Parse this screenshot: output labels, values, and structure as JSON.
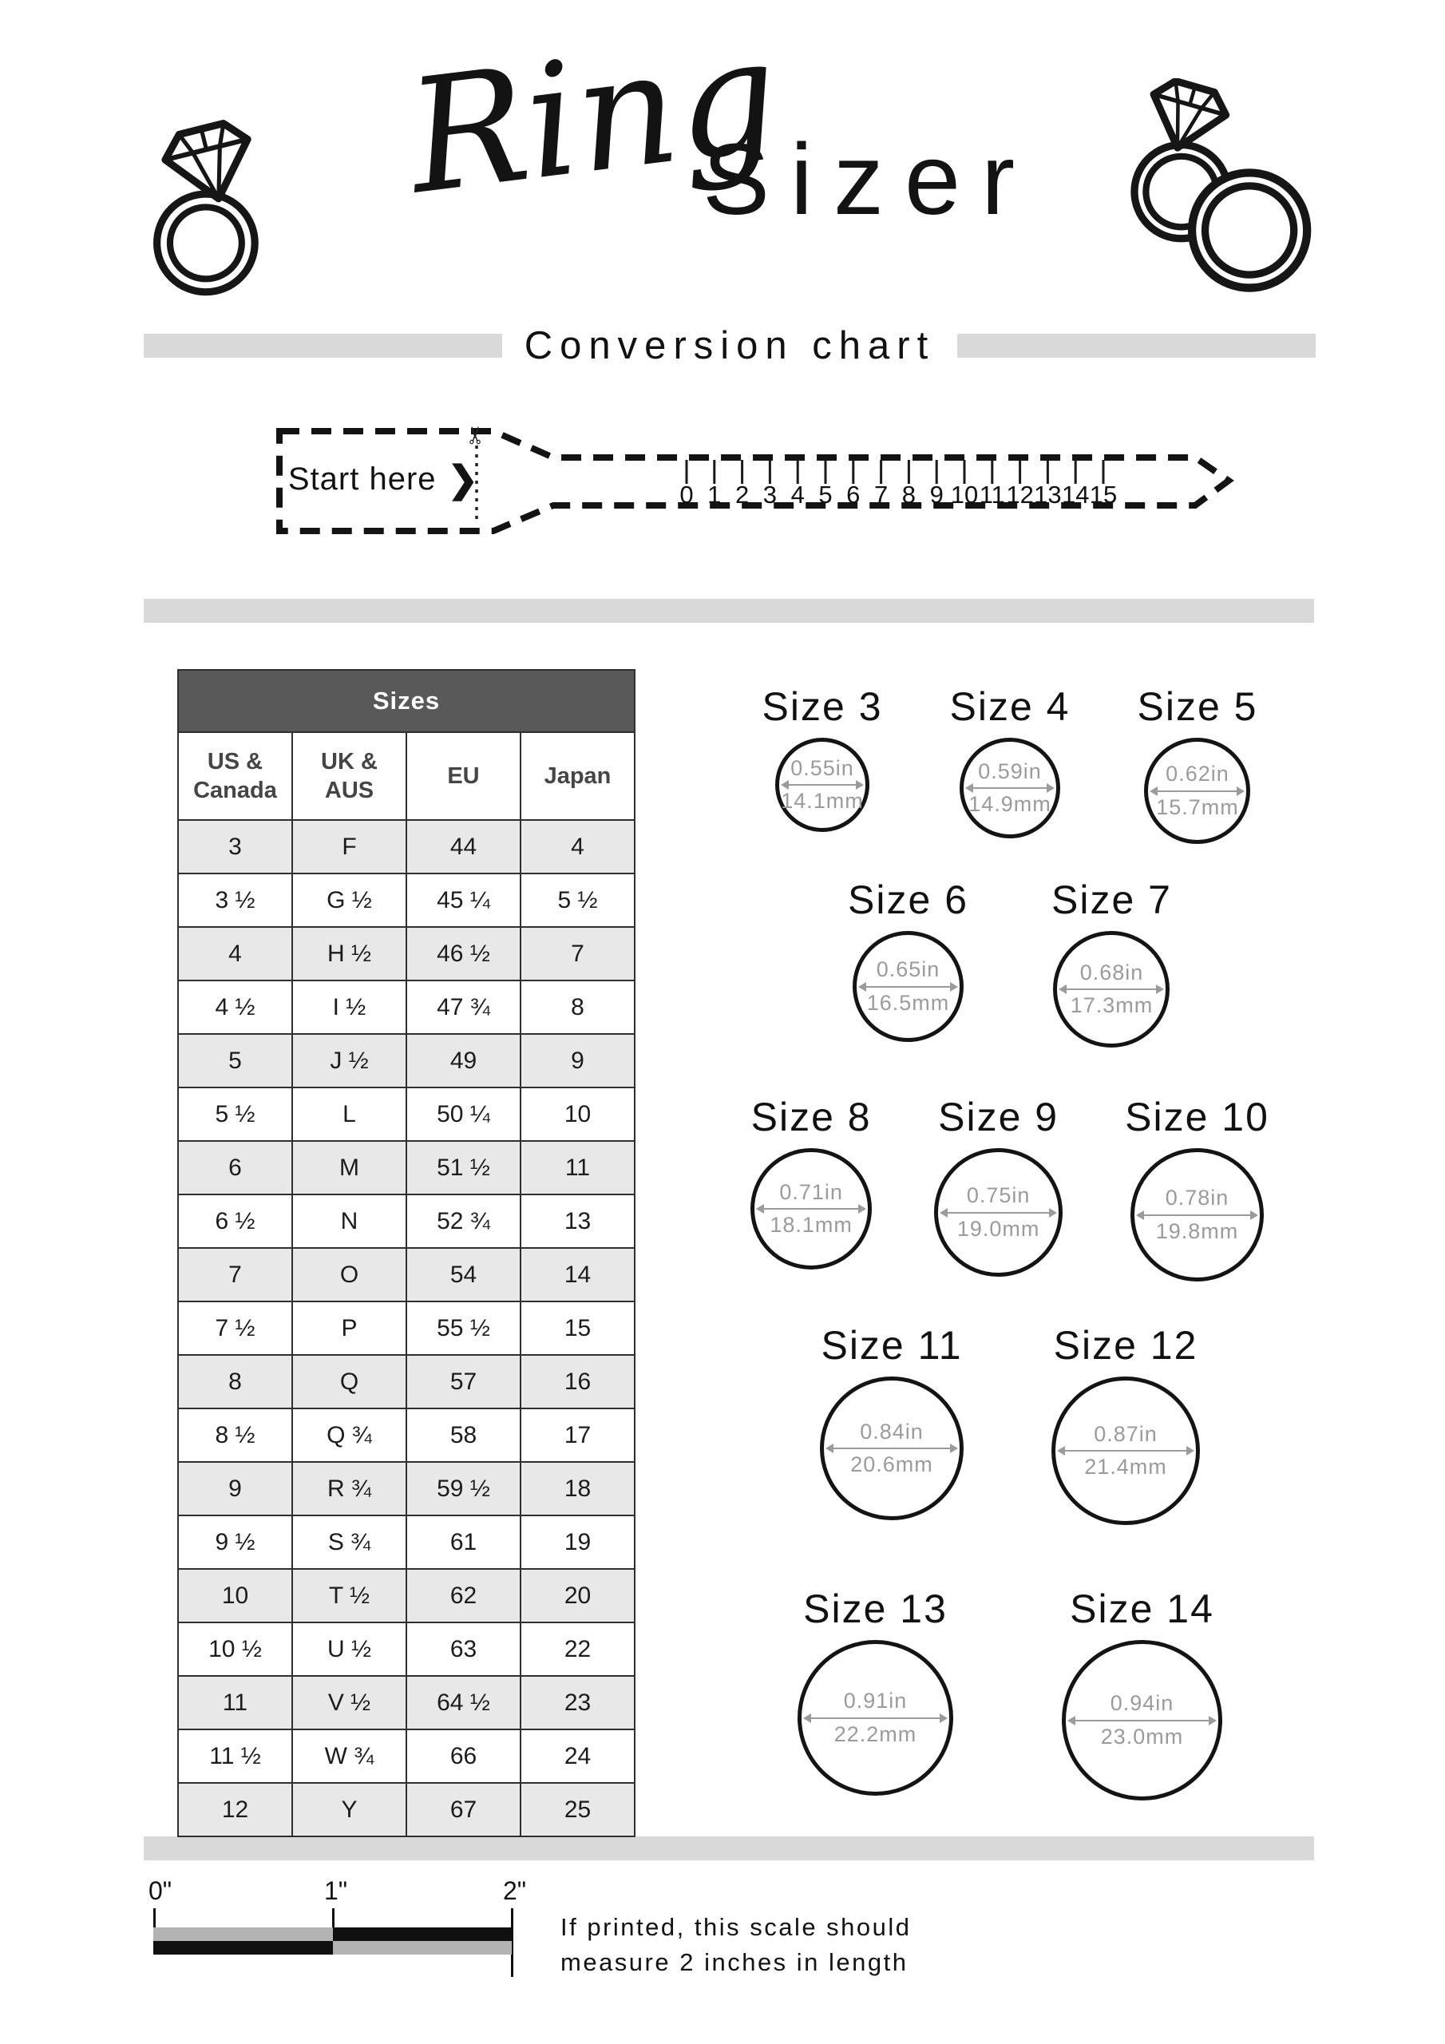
{
  "header": {
    "script_word": "Ring",
    "plain_word": "Sizer"
  },
  "subtitle": {
    "label": "Conversion chart"
  },
  "sizer_strip": {
    "start_label": "Start here",
    "chevron": "❯",
    "scissors": "✂",
    "ruler_numbers": [
      "0",
      "1",
      "2",
      "3",
      "4",
      "5",
      "6",
      "7",
      "8",
      "9",
      "10",
      "11",
      "12",
      "13",
      "14",
      "15"
    ]
  },
  "table": {
    "title": "Sizes",
    "columns": [
      "US & Canada",
      "UK & AUS",
      "EU",
      "Japan"
    ],
    "rows": [
      [
        "3",
        "F",
        "44",
        "4"
      ],
      [
        "3 ½",
        "G ½",
        "45 ¼",
        "5 ½"
      ],
      [
        "4",
        "H ½",
        "46 ½",
        "7"
      ],
      [
        "4 ½",
        "I ½",
        "47 ¾",
        "8"
      ],
      [
        "5",
        "J ½",
        "49",
        "9"
      ],
      [
        "5 ½",
        "L",
        "50 ¼",
        "10"
      ],
      [
        "6",
        "M",
        "51 ½",
        "11"
      ],
      [
        "6 ½",
        "N",
        "52 ¾",
        "13"
      ],
      [
        "7",
        "O",
        "54",
        "14"
      ],
      [
        "7 ½",
        "P",
        "55 ½",
        "15"
      ],
      [
        "8",
        "Q",
        "57",
        "16"
      ],
      [
        "8 ½",
        "Q ¾",
        "58",
        "17"
      ],
      [
        "9",
        "R ¾",
        "59 ½",
        "18"
      ],
      [
        "9 ½",
        "S ¾",
        "61",
        "19"
      ],
      [
        "10",
        "T ½",
        "62",
        "20"
      ],
      [
        "10 ½",
        "U ½",
        "63",
        "22"
      ],
      [
        "11",
        "V ½",
        "64 ½",
        "23"
      ],
      [
        "11 ½",
        "W ¾",
        "66",
        "24"
      ],
      [
        "12",
        "Y",
        "67",
        "25"
      ]
    ]
  },
  "ring_sizes": [
    {
      "label": "Size 3",
      "inches": "0.55in",
      "mm": "14.1mm",
      "row": 1
    },
    {
      "label": "Size 4",
      "inches": "0.59in",
      "mm": "14.9mm",
      "row": 1
    },
    {
      "label": "Size 5",
      "inches": "0.62in",
      "mm": "15.7mm",
      "row": 1
    },
    {
      "label": "Size 6",
      "inches": "0.65in",
      "mm": "16.5mm",
      "row": 2
    },
    {
      "label": "Size 7",
      "inches": "0.68in",
      "mm": "17.3mm",
      "row": 2
    },
    {
      "label": "Size 8",
      "inches": "0.71in",
      "mm": "18.1mm",
      "row": 3
    },
    {
      "label": "Size 9",
      "inches": "0.75in",
      "mm": "19.0mm",
      "row": 3
    },
    {
      "label": "Size 10",
      "inches": "0.78in",
      "mm": "19.8mm",
      "row": 3
    },
    {
      "label": "Size 11",
      "inches": "0.84in",
      "mm": "20.6mm",
      "row": 4
    },
    {
      "label": "Size 12",
      "inches": "0.87in",
      "mm": "21.4mm",
      "row": 4
    },
    {
      "label": "Size 13",
      "inches": "0.91in",
      "mm": "22.2mm",
      "row": 5
    },
    {
      "label": "Size 14",
      "inches": "0.94in",
      "mm": "23.0mm",
      "row": 5
    }
  ],
  "print_scale": {
    "labels": [
      "0\"",
      "1\"",
      "2\""
    ],
    "note_line1": "If printed, this scale should",
    "note_line2": "measure 2 inches in length"
  },
  "colors": {
    "table_header_bg": "#595959",
    "row_shade": "#e8e8e8",
    "divider": "#d9d9d9",
    "dimension_gray": "#9b9b9b"
  }
}
